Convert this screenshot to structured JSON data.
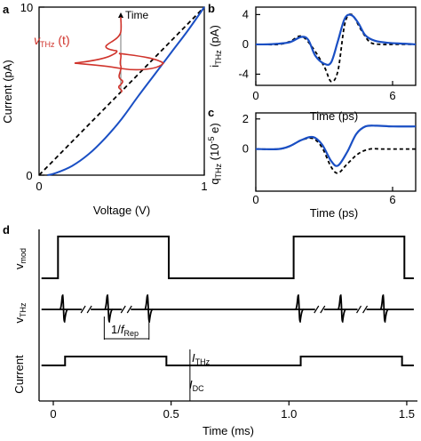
{
  "chart_data": [
    {
      "panel": "a",
      "type": "line",
      "xlabel": "Voltage (V)",
      "ylabel": "Current (pA)",
      "xlim": [
        0,
        1
      ],
      "ylim": [
        0,
        10
      ],
      "xticks": [
        "0",
        "1"
      ],
      "yticks": [
        "0",
        "10"
      ],
      "series": [
        {
          "style": "dashed",
          "color": "#000000",
          "x": [
            0,
            1
          ],
          "y": [
            0,
            10
          ]
        },
        {
          "style": "solid",
          "color": "#1a4fc4",
          "x": [
            0.05,
            0.1,
            0.2,
            0.3,
            0.4,
            0.5,
            0.6,
            0.7,
            0.8,
            0.9,
            1.0
          ],
          "y": [
            0.0,
            0.12,
            0.55,
            1.25,
            2.2,
            3.35,
            4.7,
            6.0,
            7.3,
            8.6,
            10.0
          ]
        }
      ],
      "annotation": {
        "label_main": "v",
        "label_sub": "THz",
        "label_suffix": " (t)",
        "color": "#d0342c",
        "time_label": "Time"
      }
    },
    {
      "panel": "b",
      "type": "line",
      "xlabel": "Time (ps)",
      "ylabel_main": "i",
      "ylabel_sub": "THz",
      "ylabel_unit": " (pA)",
      "xlim": [
        0,
        7
      ],
      "ylim": [
        -5.5,
        5
      ],
      "xticks": [
        "0",
        "6"
      ],
      "yticks": [
        "4",
        "0",
        "-4"
      ],
      "series": [
        {
          "style": "solid",
          "color": "#1a4fc4",
          "x": [
            0,
            0.5,
            1.0,
            1.5,
            2.0,
            2.3,
            2.6,
            3.0,
            3.3,
            3.6,
            3.9,
            4.2,
            4.5,
            4.8,
            5.2,
            5.8,
            6.5,
            7.0
          ],
          "y": [
            0,
            0,
            0.1,
            0.3,
            1.0,
            0.6,
            -1.5,
            -2.6,
            -2.4,
            0.5,
            3.5,
            3.9,
            2.8,
            1.2,
            0.5,
            0.2,
            0.1,
            0
          ]
        },
        {
          "style": "dashed",
          "color": "#000000",
          "x": [
            0,
            1.0,
            1.5,
            2.0,
            2.5,
            3.0,
            3.3,
            3.6,
            3.9,
            4.2,
            4.6,
            5.0,
            5.5,
            6.0,
            7.0
          ],
          "y": [
            0,
            0,
            0.4,
            1.1,
            -0.5,
            -3.0,
            -5.0,
            -3.5,
            2.8,
            4.0,
            2.0,
            0.3,
            0,
            0,
            0
          ]
        }
      ]
    },
    {
      "panel": "c",
      "type": "line",
      "xlabel": "Time (ps)",
      "ylabel_main": "q",
      "ylabel_sub": "THz",
      "ylabel_unit_pre": " (10",
      "ylabel_unit_exp": "-5",
      "ylabel_unit_post": " e)",
      "xlim": [
        0,
        7
      ],
      "ylim": [
        -2.8,
        2.4
      ],
      "xticks": [
        "0",
        "6"
      ],
      "yticks": [
        "2",
        "0"
      ],
      "series": [
        {
          "style": "solid",
          "color": "#1a4fc4",
          "x": [
            0,
            1.0,
            1.5,
            2.0,
            2.5,
            2.9,
            3.3,
            3.6,
            4.0,
            4.4,
            4.8,
            5.3,
            6.0,
            7.0
          ],
          "y": [
            0,
            0,
            0.2,
            0.6,
            0.8,
            0.3,
            -0.8,
            -1.1,
            -0.2,
            1.0,
            1.5,
            1.55,
            1.5,
            1.5
          ],
          "tail_dashed_to": 7.3
        },
        {
          "style": "dashed",
          "color": "#000000",
          "x": [
            0,
            1.0,
            1.5,
            2.0,
            2.5,
            2.9,
            3.3,
            3.6,
            4.0,
            4.5,
            5.0,
            5.5,
            6.0,
            7.0
          ],
          "y": [
            0,
            0,
            0.2,
            0.6,
            0.7,
            0.1,
            -1.2,
            -1.6,
            -1.0,
            -0.3,
            0,
            0,
            0,
            0
          ]
        }
      ]
    },
    {
      "panel": "d",
      "type": "line",
      "xlabel": "Time (ms)",
      "xlim": [
        -0.05,
        1.55
      ],
      "xticks": [
        "0",
        "0.5",
        "1.0",
        "1.5"
      ],
      "xtick_values": [
        0,
        0.5,
        1.0,
        1.5
      ],
      "rows": [
        {
          "ylabel_main": "v",
          "ylabel_sub": "mod",
          "on_windows": [
            [
              0.02,
              0.49
            ],
            [
              1.02,
              1.49
            ]
          ]
        },
        {
          "ylabel_main": "v",
          "ylabel_sub": "THz",
          "pulses": [
            0.04,
            0.23,
            0.4,
            1.04,
            1.22,
            1.4
          ],
          "breaks": [
            0.14,
            0.31,
            1.13,
            1.31
          ],
          "period_label_pre": "1/",
          "period_label_main": "f",
          "period_label_sub": "Rep",
          "period_span": [
            0.22,
            0.41
          ]
        },
        {
          "ylabel_main": "Current",
          "pulse_windows": [
            [
              0.05,
              0.48
            ],
            [
              1.05,
              1.48
            ]
          ],
          "ithz_main": "I",
          "ithz_sub": "THz",
          "idc_main": "I",
          "idc_sub": "DC",
          "marker_x": 0.58
        }
      ]
    }
  ],
  "panel_letters": {
    "a": "a",
    "b": "b",
    "c": "c",
    "d": "d"
  },
  "colors": {
    "blue": "#1a4fc4",
    "red": "#d0342c",
    "black": "#000000"
  }
}
